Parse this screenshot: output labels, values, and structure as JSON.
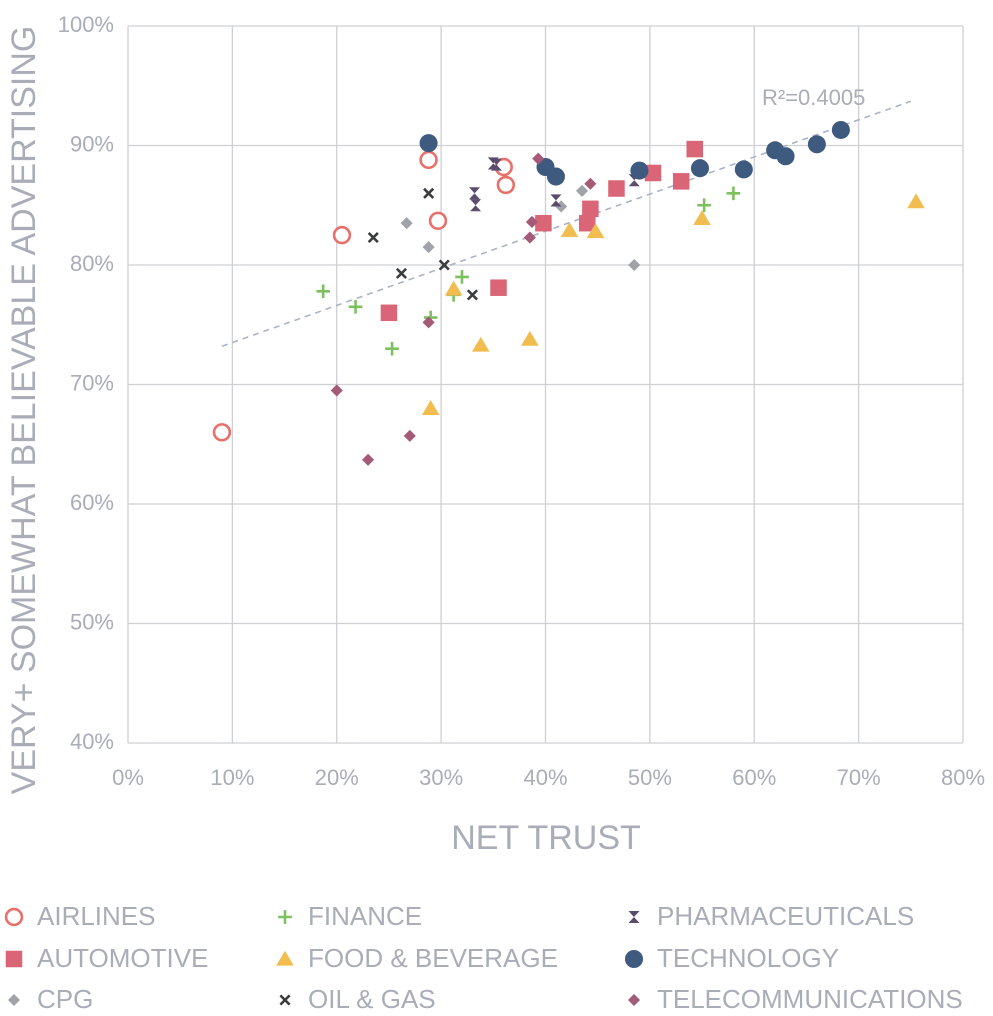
{
  "chart_data": {
    "type": "scatter",
    "xlabel": "NET TRUST",
    "ylabel": "VERY+ SOMEWHAT BELIEVABLE ADVERTISING",
    "xlim": [
      0,
      0.8
    ],
    "ylim": [
      0.4,
      1.0
    ],
    "x_ticks": [
      "0%",
      "10%",
      "20%",
      "30%",
      "40%",
      "50%",
      "60%",
      "70%",
      "80%"
    ],
    "y_ticks": [
      "40%",
      "50%",
      "60%",
      "70%",
      "80%",
      "90%",
      "100%"
    ],
    "grid": true,
    "legend_position": "bottom",
    "trendline": {
      "label": "R²=0.4005",
      "x": [
        0.09,
        0.75
      ],
      "y": [
        0.732,
        0.937
      ],
      "color": "#a9b4c6"
    },
    "series": [
      {
        "name": "AIRLINES",
        "marker": "open-circle",
        "color": "#e8706a",
        "x": [
          0.09,
          0.205,
          0.288,
          0.297,
          0.36,
          0.362
        ],
        "y": [
          0.66,
          0.825,
          0.888,
          0.837,
          0.882,
          0.867
        ]
      },
      {
        "name": "AUTOMOTIVE",
        "marker": "square",
        "color": "#d96576",
        "x": [
          0.25,
          0.355,
          0.398,
          0.44,
          0.443,
          0.468,
          0.503,
          0.53,
          0.543
        ],
        "y": [
          0.76,
          0.781,
          0.835,
          0.835,
          0.847,
          0.864,
          0.877,
          0.87,
          0.897
        ]
      },
      {
        "name": "CPG",
        "marker": "small-diamond",
        "color": "#a0a3a8",
        "x": [
          0.267,
          0.288,
          0.415,
          0.435,
          0.485
        ],
        "y": [
          0.835,
          0.815,
          0.849,
          0.862,
          0.8
        ]
      },
      {
        "name": "FINANCE",
        "marker": "plus",
        "color": "#7dc15f",
        "x": [
          0.187,
          0.218,
          0.253,
          0.29,
          0.312,
          0.32,
          0.552,
          0.58
        ],
        "y": [
          0.778,
          0.765,
          0.73,
          0.756,
          0.775,
          0.79,
          0.85,
          0.86
        ]
      },
      {
        "name": "FOOD & BEVERAGE",
        "marker": "triangle",
        "color": "#f2bd50",
        "x": [
          0.29,
          0.312,
          0.338,
          0.385,
          0.423,
          0.448,
          0.55,
          0.755
        ],
        "y": [
          0.68,
          0.78,
          0.733,
          0.738,
          0.829,
          0.828,
          0.839,
          0.853
        ]
      },
      {
        "name": "OIL & GAS",
        "marker": "x",
        "color": "#3a3c40",
        "x": [
          0.235,
          0.262,
          0.288,
          0.303,
          0.33
        ],
        "y": [
          0.823,
          0.793,
          0.86,
          0.8,
          0.775
        ]
      },
      {
        "name": "PHARMACEUTICALS",
        "marker": "hourglass",
        "color": "#5a4d6c",
        "x": [
          0.332,
          0.333,
          0.35,
          0.353,
          0.41,
          0.485
        ],
        "y": [
          0.86,
          0.85,
          0.885,
          0.884,
          0.854,
          0.871
        ]
      },
      {
        "name": "TECHNOLOGY",
        "marker": "circle",
        "color": "#3e5a7f",
        "x": [
          0.288,
          0.4,
          0.41,
          0.49,
          0.548,
          0.59,
          0.62,
          0.63,
          0.66,
          0.683
        ],
        "y": [
          0.902,
          0.882,
          0.874,
          0.879,
          0.881,
          0.88,
          0.896,
          0.891,
          0.901,
          0.913
        ]
      },
      {
        "name": "TELECOMMUNICATIONS",
        "marker": "small-diamond",
        "color": "#a55a78",
        "x": [
          0.2,
          0.23,
          0.27,
          0.288,
          0.385,
          0.387,
          0.393,
          0.443
        ],
        "y": [
          0.695,
          0.637,
          0.657,
          0.752,
          0.823,
          0.836,
          0.889,
          0.868
        ]
      }
    ]
  }
}
